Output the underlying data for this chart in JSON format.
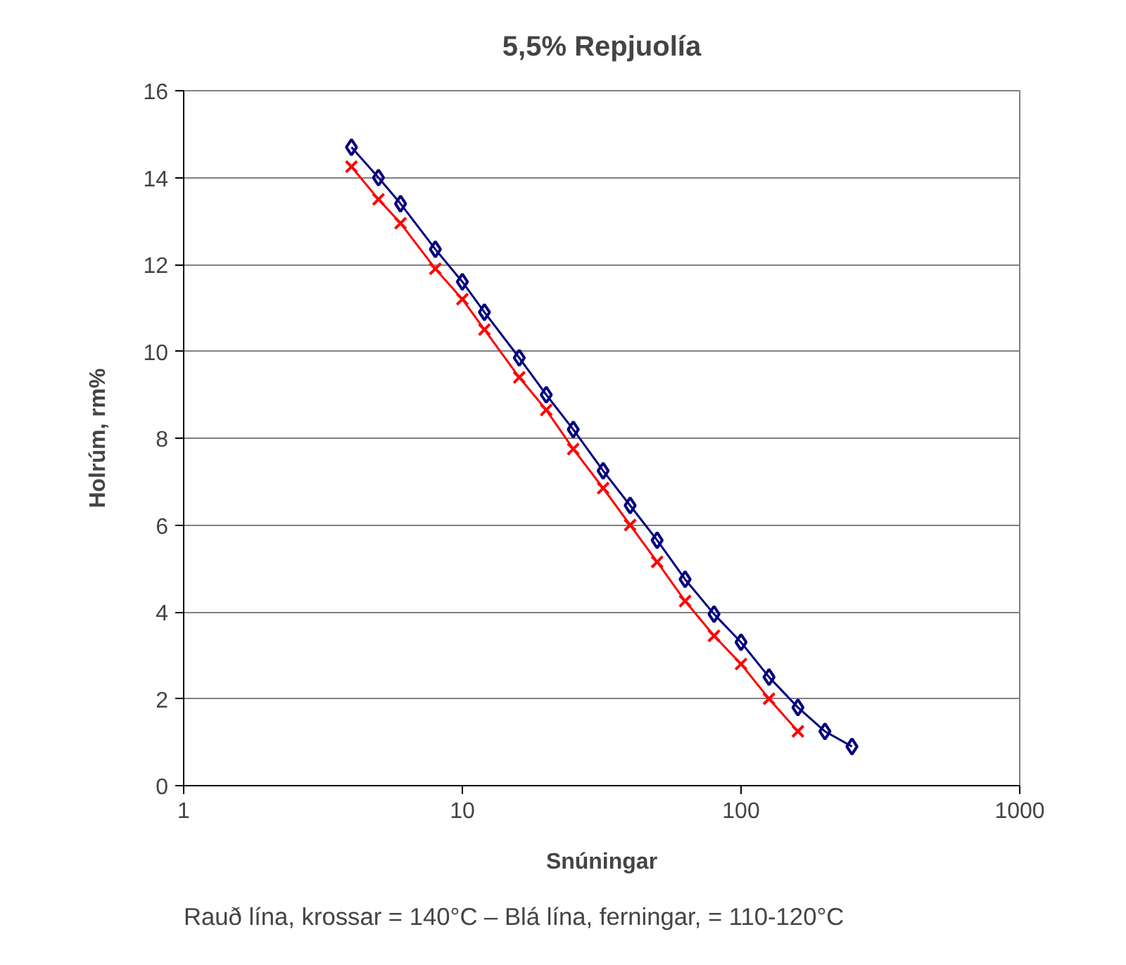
{
  "chart_data": {
    "type": "line",
    "title": "5,5% Repjuolía",
    "xlabel": "Snúningar",
    "ylabel": "Holrúm, rm%",
    "log": "x",
    "xlim": [
      1,
      1000
    ],
    "xticks": [
      1,
      10,
      100,
      1000
    ],
    "ylim": [
      0,
      16
    ],
    "yticks": [
      0,
      2,
      4,
      6,
      8,
      10,
      12,
      14,
      16
    ],
    "grid": "y",
    "series": [
      {
        "color": "#000080",
        "marker": "diamond",
        "x": [
          4,
          5,
          6,
          8,
          10,
          12,
          16,
          20,
          25,
          32,
          40,
          50,
          63,
          80,
          100,
          126,
          160,
          200,
          250
        ],
        "values": [
          14.7,
          14.0,
          13.4,
          12.35,
          11.6,
          10.9,
          9.85,
          9.0,
          8.2,
          7.25,
          6.45,
          5.65,
          4.75,
          3.95,
          3.3,
          2.5,
          1.8,
          1.25,
          0.9
        ]
      },
      {
        "color": "#ff0000",
        "marker": "cross",
        "x": [
          4,
          5,
          6,
          8,
          10,
          12,
          16,
          20,
          25,
          32,
          40,
          50,
          63,
          80,
          100,
          126,
          160
        ],
        "values": [
          14.25,
          13.5,
          12.95,
          11.9,
          11.2,
          10.5,
          9.4,
          8.65,
          7.75,
          6.85,
          6.0,
          5.15,
          4.25,
          3.45,
          2.8,
          2.0,
          1.25
        ]
      }
    ],
    "annotations": [
      "Rauð lína, krossar = 140°C – Blá lína, ferningar, = 110-120°C"
    ]
  }
}
